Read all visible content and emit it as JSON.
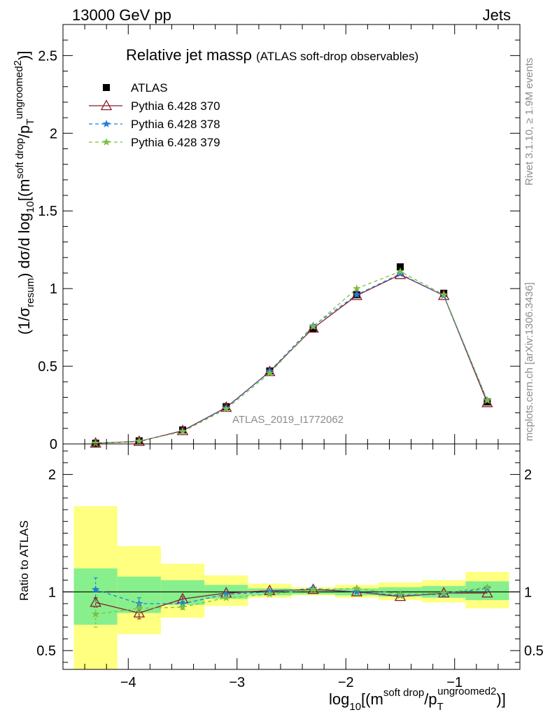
{
  "header": {
    "left": "13000 GeV pp",
    "right": "Jets"
  },
  "side_labels": {
    "rivet": "Rivet 3.1.10, ≥ 1.9M events",
    "mcplots": "mcplots.cern.ch [arXiv:1306.3436]"
  },
  "plot": {
    "title_main": "Relative jet massρ",
    "title_sub": "(ATLAS soft-drop observables)",
    "watermark": "ATLAS_2019_I1772062"
  },
  "chart_data": [
    {
      "type": "scatter",
      "title": "Relative jet massρ (ATLAS soft-drop observables)",
      "xlabel": "log10[(m^soft drop/pT^ungroomed)^2]",
      "ylabel": "(1/σresum) dσ/d log10[(m^soft drop/pT^ungroomed)^2]",
      "xlim": [
        -4.6,
        -0.4
      ],
      "ylim": [
        0,
        2.7
      ],
      "yticks": [
        0,
        0.5,
        1,
        1.5,
        2,
        2.5
      ],
      "ytick_labels": [
        "0",
        "0.5",
        "1",
        "1.5",
        "2",
        "2.5"
      ],
      "legend_placement": "top-left",
      "x": [
        -4.3,
        -3.9,
        -3.5,
        -3.1,
        -2.7,
        -2.3,
        -1.9,
        -1.5,
        -1.1,
        -0.7
      ],
      "series": [
        {
          "name": "ATLAS",
          "color": "#000000",
          "marker": "square",
          "values": [
            0.005,
            0.02,
            0.09,
            0.24,
            0.47,
            0.74,
            0.96,
            1.14,
            0.97,
            0.27
          ]
        },
        {
          "name": "Pythia 6.428 370",
          "color": "#8b1a2b",
          "marker": "triangle",
          "line": "solid",
          "values": [
            0.0045,
            0.016,
            0.085,
            0.235,
            0.465,
            0.745,
            0.955,
            1.09,
            0.955,
            0.265
          ]
        },
        {
          "name": "Pythia 6.428 378",
          "color": "#1f7fd6",
          "marker": "star",
          "line": "dashed",
          "values": [
            0.005,
            0.018,
            0.082,
            0.232,
            0.468,
            0.76,
            0.96,
            1.095,
            0.955,
            0.28
          ]
        },
        {
          "name": "Pythia 6.428 379",
          "color": "#7ac043",
          "marker": "star",
          "line": "dashed",
          "values": [
            0.004,
            0.017,
            0.079,
            0.225,
            0.455,
            0.755,
            1.0,
            1.11,
            0.96,
            0.28
          ]
        }
      ]
    },
    {
      "type": "scatter",
      "title": "",
      "xlabel": "log10[(m^soft drop/pT^ungroomed)^2]",
      "ylabel": "Ratio to ATLAS",
      "xlim": [
        -4.6,
        -0.4
      ],
      "ylim": [
        0.34,
        2.26
      ],
      "yticks": [
        0.5,
        1,
        2
      ],
      "ytick_labels": [
        "0.5",
        "1",
        "2"
      ],
      "xticks": [
        -4,
        -3,
        -2,
        -1
      ],
      "xtick_labels": [
        "−4",
        "−3",
        "−2",
        "−1"
      ],
      "bins": [
        {
          "x0": -4.5,
          "x1": -4.1,
          "green": [
            0.72,
            1.2
          ],
          "yellow": [
            0.34,
            1.73
          ]
        },
        {
          "x0": -4.1,
          "x1": -3.7,
          "green": [
            0.82,
            1.13
          ],
          "yellow": [
            0.64,
            1.39
          ]
        },
        {
          "x0": -3.7,
          "x1": -3.3,
          "green": [
            0.89,
            1.1
          ],
          "yellow": [
            0.78,
            1.24
          ]
        },
        {
          "x0": -3.3,
          "x1": -2.9,
          "green": [
            0.94,
            1.06
          ],
          "yellow": [
            0.88,
            1.14
          ]
        },
        {
          "x0": -2.9,
          "x1": -2.5,
          "green": [
            0.97,
            1.03
          ],
          "yellow": [
            0.95,
            1.07
          ]
        },
        {
          "x0": -2.5,
          "x1": -2.1,
          "green": [
            0.98,
            1.02
          ],
          "yellow": [
            0.97,
            1.04
          ]
        },
        {
          "x0": -2.1,
          "x1": -1.7,
          "green": [
            0.97,
            1.03
          ],
          "yellow": [
            0.95,
            1.06
          ]
        },
        {
          "x0": -1.7,
          "x1": -1.3,
          "green": [
            0.96,
            1.04
          ],
          "yellow": [
            0.93,
            1.08
          ]
        },
        {
          "x0": -1.3,
          "x1": -0.9,
          "green": [
            0.95,
            1.05
          ],
          "yellow": [
            0.91,
            1.1
          ]
        },
        {
          "x0": -0.9,
          "x1": -0.5,
          "green": [
            0.93,
            1.09
          ],
          "yellow": [
            0.86,
            1.17
          ]
        }
      ],
      "x": [
        -4.3,
        -3.9,
        -3.5,
        -3.1,
        -2.7,
        -2.3,
        -1.9,
        -1.5,
        -1.1,
        -0.7
      ],
      "series": [
        {
          "name": "Pythia 6.428 370",
          "color": "#8b1a2b",
          "marker": "triangle",
          "line": "solid",
          "values": [
            0.91,
            0.82,
            0.94,
            0.99,
            1.01,
            1.02,
            1.0,
            0.96,
            0.99,
            0.99
          ],
          "err": [
            0.04,
            0.05,
            0.02,
            0.01,
            0.005,
            0.005,
            0.005,
            0.005,
            0.005,
            0.005
          ]
        },
        {
          "name": "Pythia 6.428 378",
          "color": "#1f7fd6",
          "marker": "star",
          "line": "dashed",
          "values": [
            1.02,
            0.9,
            0.9,
            0.98,
            1.0,
            1.03,
            1.0,
            0.97,
            0.98,
            1.03
          ],
          "err": [
            0.1,
            0.05,
            0.02,
            0.01,
            0.005,
            0.005,
            0.005,
            0.005,
            0.005,
            0.005
          ]
        },
        {
          "name": "Pythia 6.428 379",
          "color": "#7ac043",
          "marker": "star",
          "line": "dashed",
          "values": [
            0.81,
            0.86,
            0.87,
            0.95,
            0.98,
            1.02,
            1.03,
            0.98,
            0.99,
            1.04
          ],
          "err": [
            0.11,
            0.04,
            0.02,
            0.01,
            0.005,
            0.005,
            0.005,
            0.005,
            0.005,
            0.005
          ]
        }
      ]
    }
  ]
}
